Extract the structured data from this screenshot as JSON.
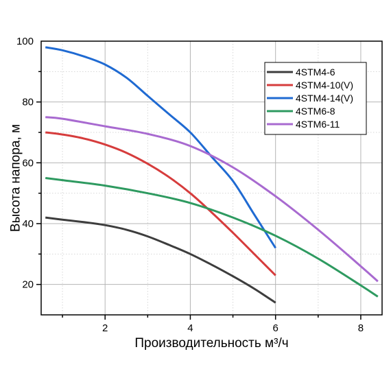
{
  "chart_data": {
    "type": "line",
    "title": "",
    "xlabel": "Производительность м³/ч",
    "ylabel": "Высота напора, м",
    "xlim": [
      0.5,
      8.5
    ],
    "ylim": [
      10,
      100
    ],
    "x_ticks": [
      2,
      4,
      6,
      8
    ],
    "x_tick_labels": [
      "2",
      "4",
      "6",
      "8"
    ],
    "y_ticks": [
      20,
      40,
      60,
      80,
      100
    ],
    "y_tick_labels": [
      "20",
      "40",
      "60",
      "80",
      "100"
    ],
    "grid": true,
    "legend_position": "top-right",
    "series": [
      {
        "name": "4STM4-6",
        "color": "#3d3d3d",
        "x": [
          0.6,
          1.0,
          1.5,
          2.0,
          2.5,
          3.0,
          3.5,
          4.0,
          4.5,
          5.0,
          5.5,
          6.0
        ],
        "y": [
          42,
          41.3,
          40.5,
          39.5,
          38,
          35.8,
          33,
          30,
          26.5,
          22.7,
          18.6,
          14
        ]
      },
      {
        "name": "4STM4-10(V)",
        "color": "#d63c3c",
        "x": [
          0.6,
          1.0,
          1.5,
          2.0,
          2.5,
          3.0,
          3.5,
          4.0,
          4.5,
          5.0,
          5.5,
          6.0
        ],
        "y": [
          70,
          69.3,
          68,
          66,
          63.3,
          59.7,
          55.3,
          50,
          43.7,
          37,
          30,
          23
        ]
      },
      {
        "name": "4STM4-14(V)",
        "color": "#1f6ad2",
        "x": [
          0.6,
          1.0,
          1.5,
          2.0,
          2.5,
          3.0,
          3.5,
          4.0,
          4.5,
          5.0,
          5.5,
          6.0
        ],
        "y": [
          98,
          97,
          95,
          92.3,
          88,
          82,
          76,
          70,
          62,
          54,
          43,
          32
        ]
      },
      {
        "name": "4STM6-8",
        "color": "#2e9a60",
        "x": [
          0.6,
          1.0,
          2.0,
          3.0,
          4.0,
          5.0,
          6.0,
          7.0,
          8.0,
          8.4
        ],
        "y": [
          55,
          54.3,
          52.5,
          50,
          46.8,
          42,
          36,
          28.5,
          19.7,
          16
        ]
      },
      {
        "name": "4STM6-11",
        "color": "#a86ad0",
        "x": [
          0.6,
          1.0,
          2.0,
          3.0,
          4.0,
          5.0,
          6.0,
          7.0,
          8.0,
          8.4
        ],
        "y": [
          75,
          74.5,
          72,
          69.5,
          65.5,
          58.5,
          49,
          38,
          26,
          21
        ]
      }
    ]
  }
}
